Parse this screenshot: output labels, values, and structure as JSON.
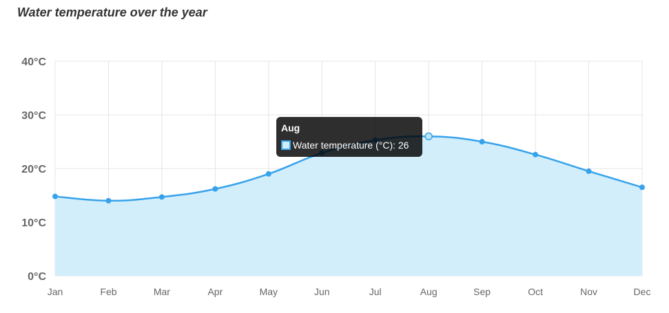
{
  "title": "Water temperature over the year",
  "chart_data": {
    "type": "area",
    "categories": [
      "Jan",
      "Feb",
      "Mar",
      "Apr",
      "May",
      "Jun",
      "Jul",
      "Aug",
      "Sep",
      "Oct",
      "Nov",
      "Dec"
    ],
    "series": [
      {
        "name": "Water temperature (°C)",
        "values": [
          14.8,
          14.0,
          14.7,
          16.2,
          19.0,
          22.9,
          25.3,
          26,
          25.0,
          22.6,
          19.5,
          16.5
        ]
      }
    ],
    "ylim": [
      0,
      40
    ],
    "yticks": [
      0,
      10,
      20,
      30,
      40
    ],
    "ytick_labels": [
      "0°C",
      "10°C",
      "20°C",
      "30°C",
      "40°C"
    ],
    "grid": true,
    "colors": {
      "line": "#36a2eb",
      "fill": "#d2eefb",
      "grid": "#e5e5e5"
    }
  },
  "tooltip": {
    "title": "Aug",
    "label": "Water temperature (°C): 26",
    "active_index": 7
  }
}
